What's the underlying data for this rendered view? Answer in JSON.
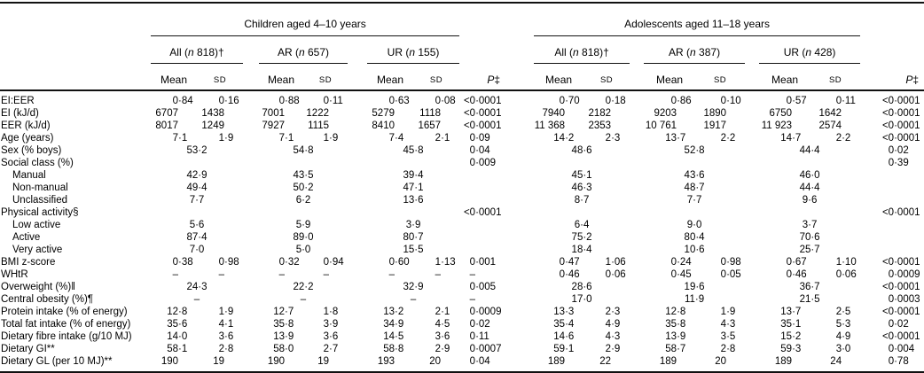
{
  "table": {
    "groups": [
      {
        "label": "Children aged 4–10 years",
        "subgroups": [
          "All (n 818)†",
          "AR (n 657)",
          "UR (n 155)"
        ]
      },
      {
        "label": "Adolescents aged 11–18 years",
        "subgroups": [
          "All (n 818)†",
          "AR (n 387)",
          "UR (n 428)"
        ]
      }
    ],
    "col_headers": {
      "mean": "Mean",
      "sd": "SD",
      "p": "P‡"
    },
    "rows": [
      {
        "label": "EI:EER",
        "indent": false,
        "g1": [
          [
            "0·84",
            "0·16"
          ],
          [
            "0·88",
            "0·11"
          ],
          [
            "0·63",
            "0·08"
          ]
        ],
        "p1": "<0·0001",
        "g2": [
          [
            "0·70",
            "0·18"
          ],
          [
            "0·86",
            "0·10"
          ],
          [
            "0·57",
            "0·11"
          ]
        ],
        "p2": "<0·0001"
      },
      {
        "label": "EI (kJ/d)",
        "indent": false,
        "g1": [
          [
            "6707",
            "1438"
          ],
          [
            "7001",
            "1222"
          ],
          [
            "5279",
            "1118"
          ]
        ],
        "p1": "<0·0001",
        "g2": [
          [
            "7940",
            "2182"
          ],
          [
            "9203",
            "1890"
          ],
          [
            "6750",
            "1642"
          ]
        ],
        "p2": "<0·0001"
      },
      {
        "label": "EER (kJ/d)",
        "indent": false,
        "g1": [
          [
            "8017",
            "1249"
          ],
          [
            "7927",
            "1115"
          ],
          [
            "8410",
            "1657"
          ]
        ],
        "p1": "<0·0001",
        "g2": [
          [
            "11 368",
            "2353"
          ],
          [
            "10 761",
            "1917"
          ],
          [
            "11 923",
            "2574"
          ]
        ],
        "p2": "<0·0001"
      },
      {
        "label": "Age (years)",
        "indent": false,
        "g1": [
          [
            "7·1",
            "1·9"
          ],
          [
            "7·1",
            "1·9"
          ],
          [
            "7·4",
            "2·1"
          ]
        ],
        "p1": "0·09",
        "g2": [
          [
            "14·2",
            "2·3"
          ],
          [
            "13·7",
            "2·2"
          ],
          [
            "14·7",
            "2·2"
          ]
        ],
        "p2": "<0·0001"
      },
      {
        "label": "Sex (% boys)",
        "indent": false,
        "g1": [
          [
            "53·2"
          ],
          [
            "54·8"
          ],
          [
            "45·8"
          ]
        ],
        "p1": "0·04",
        "g2": [
          [
            "48·6"
          ],
          [
            "52·8"
          ],
          [
            "44·4"
          ]
        ],
        "p2": "0·02"
      },
      {
        "label": "Social class (%)",
        "indent": false,
        "g1": [
          [],
          [],
          []
        ],
        "p1": "0·009",
        "g2": [
          [],
          [],
          []
        ],
        "p2": "0·39"
      },
      {
        "label": "Manual",
        "indent": true,
        "g1": [
          [
            "42·9"
          ],
          [
            "43·5"
          ],
          [
            "39·4"
          ]
        ],
        "p1": "",
        "g2": [
          [
            "45·1"
          ],
          [
            "43·6"
          ],
          [
            "46·0"
          ]
        ],
        "p2": ""
      },
      {
        "label": "Non-manual",
        "indent": true,
        "g1": [
          [
            "49·4"
          ],
          [
            "50·2"
          ],
          [
            "47·1"
          ]
        ],
        "p1": "",
        "g2": [
          [
            "46·3"
          ],
          [
            "48·7"
          ],
          [
            "44·4"
          ]
        ],
        "p2": ""
      },
      {
        "label": "Unclassified",
        "indent": true,
        "g1": [
          [
            "7·7"
          ],
          [
            "6·2"
          ],
          [
            "13·6"
          ]
        ],
        "p1": "",
        "g2": [
          [
            "8·7"
          ],
          [
            "7·7"
          ],
          [
            "9·6"
          ]
        ],
        "p2": ""
      },
      {
        "label": "Physical activity§",
        "indent": false,
        "g1": [
          [],
          [],
          []
        ],
        "p1": "<0·0001",
        "g2": [
          [],
          [],
          []
        ],
        "p2": "<0·0001"
      },
      {
        "label": "Low active",
        "indent": true,
        "g1": [
          [
            "5·6"
          ],
          [
            "5·9"
          ],
          [
            "3·9"
          ]
        ],
        "p1": "",
        "g2": [
          [
            "6·4"
          ],
          [
            "9·0"
          ],
          [
            "3·7"
          ]
        ],
        "p2": ""
      },
      {
        "label": "Active",
        "indent": true,
        "g1": [
          [
            "87·4"
          ],
          [
            "89·0"
          ],
          [
            "80·7"
          ]
        ],
        "p1": "",
        "g2": [
          [
            "75·2"
          ],
          [
            "80·4"
          ],
          [
            "70·6"
          ]
        ],
        "p2": ""
      },
      {
        "label": "Very active",
        "indent": true,
        "g1": [
          [
            "7·0"
          ],
          [
            "5·0"
          ],
          [
            "15·5"
          ]
        ],
        "p1": "",
        "g2": [
          [
            "18·4"
          ],
          [
            "10·6"
          ],
          [
            "25·7"
          ]
        ],
        "p2": ""
      },
      {
        "label": "BMI z-score",
        "indent": false,
        "g1": [
          [
            "0·38",
            "0·98"
          ],
          [
            "0·32",
            "0·94"
          ],
          [
            "0·60",
            "1·13"
          ]
        ],
        "p1": "0·001",
        "g2": [
          [
            "0·47",
            "1·06"
          ],
          [
            "0·24",
            "0·98"
          ],
          [
            "0·67",
            "1·10"
          ]
        ],
        "p2": "<0·0001"
      },
      {
        "label": "WHtR",
        "indent": false,
        "g1": [
          [
            "–",
            "–"
          ],
          [
            "–",
            "–"
          ],
          [
            "–",
            "–"
          ]
        ],
        "p1": "–",
        "g2": [
          [
            "0·46",
            "0·06"
          ],
          [
            "0·45",
            "0·05"
          ],
          [
            "0·46",
            "0·06"
          ]
        ],
        "p2": "0·0009"
      },
      {
        "label": "Overweight (%)‖",
        "indent": false,
        "g1": [
          [
            "24·3"
          ],
          [
            "22·2"
          ],
          [
            "32·9"
          ]
        ],
        "p1": "0·005",
        "g2": [
          [
            "28·6"
          ],
          [
            "19·6"
          ],
          [
            "36·7"
          ]
        ],
        "p2": "<0·0001"
      },
      {
        "label": "Central obesity (%)¶",
        "indent": false,
        "g1": [
          [
            "–"
          ],
          [
            "–"
          ],
          [
            "–"
          ]
        ],
        "p1": "–",
        "g2": [
          [
            "17·0"
          ],
          [
            "11·9"
          ],
          [
            "21·5"
          ]
        ],
        "p2": "0·0003"
      },
      {
        "label": "Protein intake (% of energy)",
        "indent": false,
        "g1": [
          [
            "12·8",
            "1·9"
          ],
          [
            "12·7",
            "1·8"
          ],
          [
            "13·2",
            "2·1"
          ]
        ],
        "p1": "0·0009",
        "g2": [
          [
            "13·3",
            "2·3"
          ],
          [
            "12·8",
            "1·9"
          ],
          [
            "13·7",
            "2·5"
          ]
        ],
        "p2": "<0·0001"
      },
      {
        "label": "Total fat intake (% of energy)",
        "indent": false,
        "g1": [
          [
            "35·6",
            "4·1"
          ],
          [
            "35·8",
            "3·9"
          ],
          [
            "34·9",
            "4·5"
          ]
        ],
        "p1": "0·02",
        "g2": [
          [
            "35·4",
            "4·9"
          ],
          [
            "35·8",
            "4·3"
          ],
          [
            "35·1",
            "5·3"
          ]
        ],
        "p2": "0·02"
      },
      {
        "label": "Dietary fibre intake (g/10 MJ)",
        "indent": false,
        "g1": [
          [
            "14·0",
            "3·6"
          ],
          [
            "13·9",
            "3·6"
          ],
          [
            "14·5",
            "3·6"
          ]
        ],
        "p1": "0·11",
        "g2": [
          [
            "14·6",
            "4·3"
          ],
          [
            "13·9",
            "3·5"
          ],
          [
            "15·2",
            "4·9"
          ]
        ],
        "p2": "<0·0001"
      },
      {
        "label": "Dietary GI**",
        "indent": false,
        "g1": [
          [
            "58·1",
            "2·8"
          ],
          [
            "58·0",
            "2·7"
          ],
          [
            "58·8",
            "2·9"
          ]
        ],
        "p1": "0·0007",
        "g2": [
          [
            "59·1",
            "2·9"
          ],
          [
            "58·7",
            "2·8"
          ],
          [
            "59·3",
            "3·0"
          ]
        ],
        "p2": "0·004"
      },
      {
        "label": "Dietary GL (per 10 MJ)**",
        "indent": false,
        "g1": [
          [
            "190",
            "19"
          ],
          [
            "190",
            "19"
          ],
          [
            "193",
            "20"
          ]
        ],
        "p1": "0·04",
        "g2": [
          [
            "189",
            "22"
          ],
          [
            "189",
            "20"
          ],
          [
            "189",
            "24"
          ]
        ],
        "p2": "0·78"
      }
    ]
  }
}
